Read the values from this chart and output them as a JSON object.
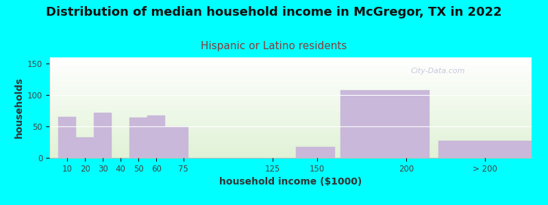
{
  "title": "Distribution of median household income in McGregor, TX in 2022",
  "subtitle": "Hispanic or Latino residents",
  "xlabel": "household income ($1000)",
  "ylabel": "households",
  "title_fontsize": 13,
  "subtitle_fontsize": 11,
  "label_fontsize": 10,
  "tick_fontsize": 8.5,
  "background_color": "#00ffff",
  "plot_bg_top": "#ffffff",
  "plot_bg_bottom": "#dff0d8",
  "bar_color": "#c9b8d9",
  "bar_edgecolor": "#c9b8d9",
  "values": [
    65,
    33,
    72,
    0,
    64,
    67,
    50,
    0,
    17,
    108,
    27
  ],
  "bar_lefts": [
    5,
    15,
    25,
    35,
    45,
    55,
    65,
    90,
    138,
    163,
    218
  ],
  "bar_widths": [
    10,
    10,
    10,
    10,
    10,
    10,
    13,
    0,
    22,
    50,
    52
  ],
  "xtick_pos": [
    10,
    20,
    30,
    40,
    50,
    60,
    75,
    125,
    150,
    200,
    244
  ],
  "xtick_labels": [
    "10",
    "20",
    "30",
    "40",
    "50",
    "60",
    "75",
    "125",
    "150",
    "200",
    "> 200"
  ],
  "ylim": [
    0,
    160
  ],
  "xlim": [
    0,
    270
  ],
  "yticks": [
    0,
    50,
    100,
    150
  ],
  "watermark": "City-Data.com",
  "subtitle_color": "#8b3a3a",
  "title_color": "#111111"
}
